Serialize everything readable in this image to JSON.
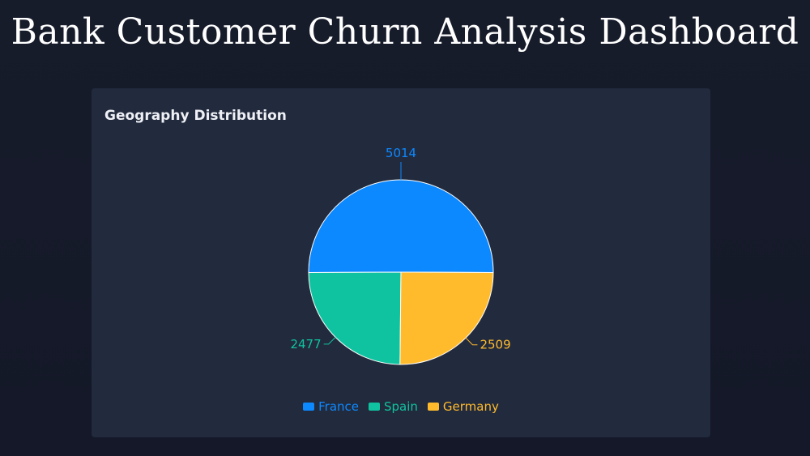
{
  "page": {
    "title": "Bank Customer Churn Analysis Dashboard"
  },
  "card": {
    "title": "Geography Distribution"
  },
  "chart_data": {
    "type": "pie",
    "title": "Geography Distribution",
    "categories": [
      "France",
      "Spain",
      "Germany"
    ],
    "values": [
      5014,
      2477,
      2509
    ],
    "colors": [
      "#0d89ff",
      "#10c3a0",
      "#ffbb2c"
    ],
    "legend": "bottom",
    "data_labels": true
  }
}
